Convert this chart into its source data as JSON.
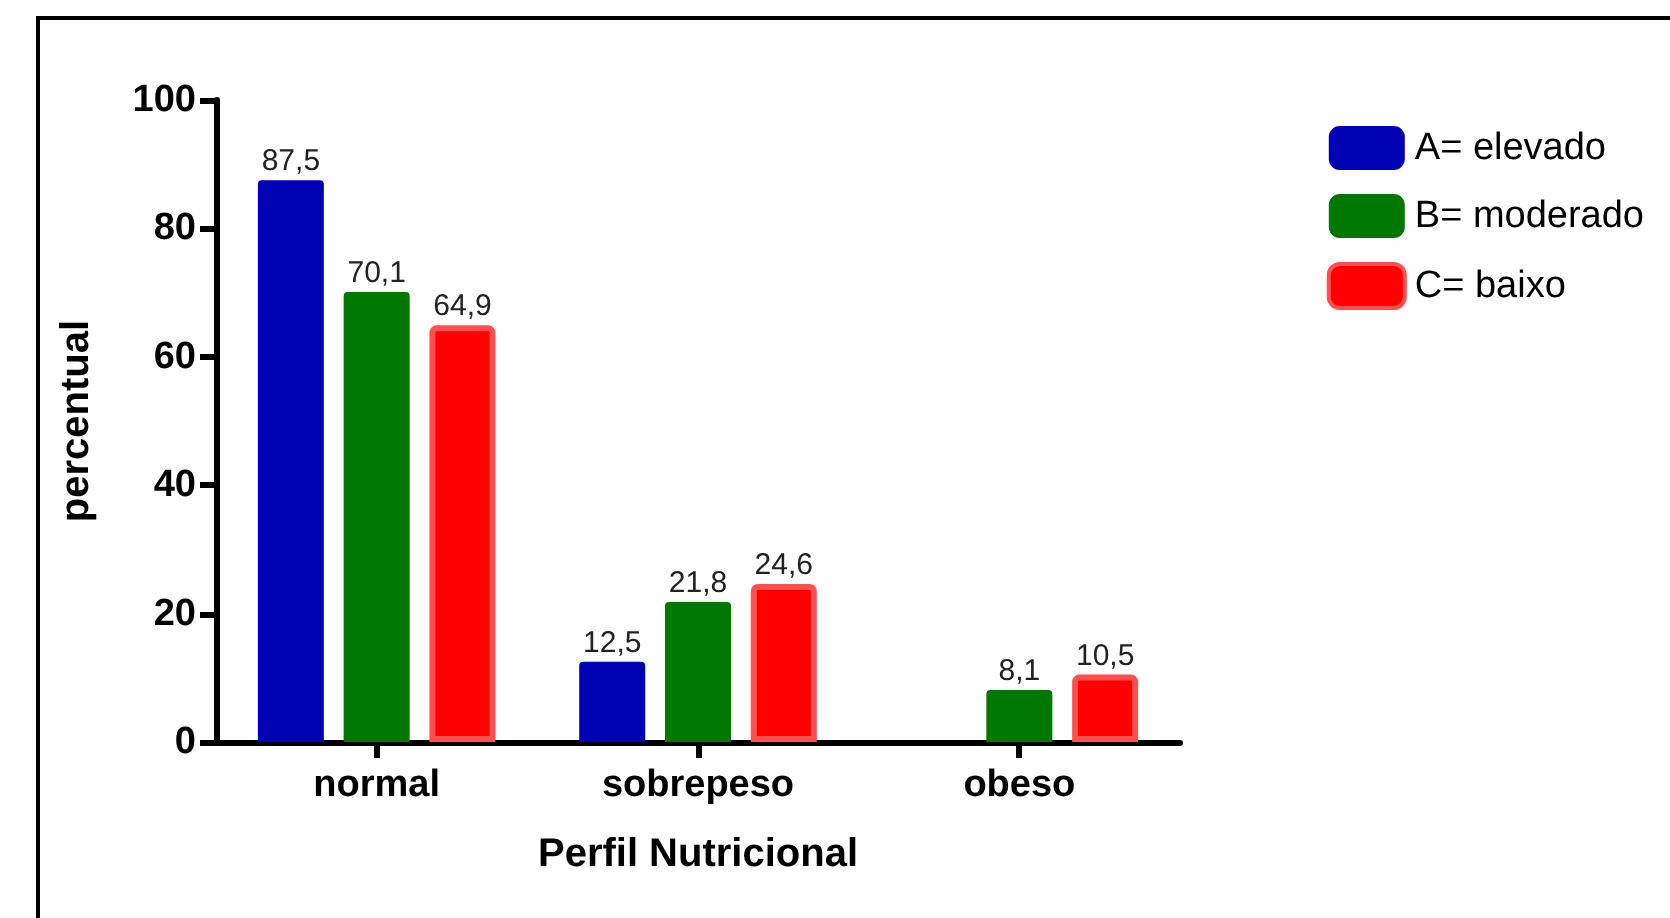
{
  "chart_data": {
    "type": "bar",
    "xlabel": "Perfil Nutricional",
    "ylabel": "percentual",
    "categories": [
      "normal",
      "sobrepeso",
      "obeso"
    ],
    "series": [
      {
        "name": "A= elevado",
        "color": "#0000b4",
        "values": [
          87.5,
          12.5,
          null
        ],
        "value_labels": [
          "87,5",
          "12,5",
          null
        ]
      },
      {
        "name": "B= moderado",
        "color": "#007800",
        "values": [
          70.1,
          21.8,
          8.1
        ],
        "value_labels": [
          "70,1",
          "21,8",
          "8,1"
        ]
      },
      {
        "name": "C= baixo",
        "color": "#ff0000",
        "values": [
          64.9,
          24.6,
          10.5
        ],
        "value_labels": [
          "64,9",
          "24,6",
          "10,5"
        ]
      }
    ],
    "ylim": [
      0,
      100
    ],
    "yticks": [
      0,
      20,
      40,
      60,
      80,
      100
    ],
    "grid": false,
    "legend": "top right"
  }
}
